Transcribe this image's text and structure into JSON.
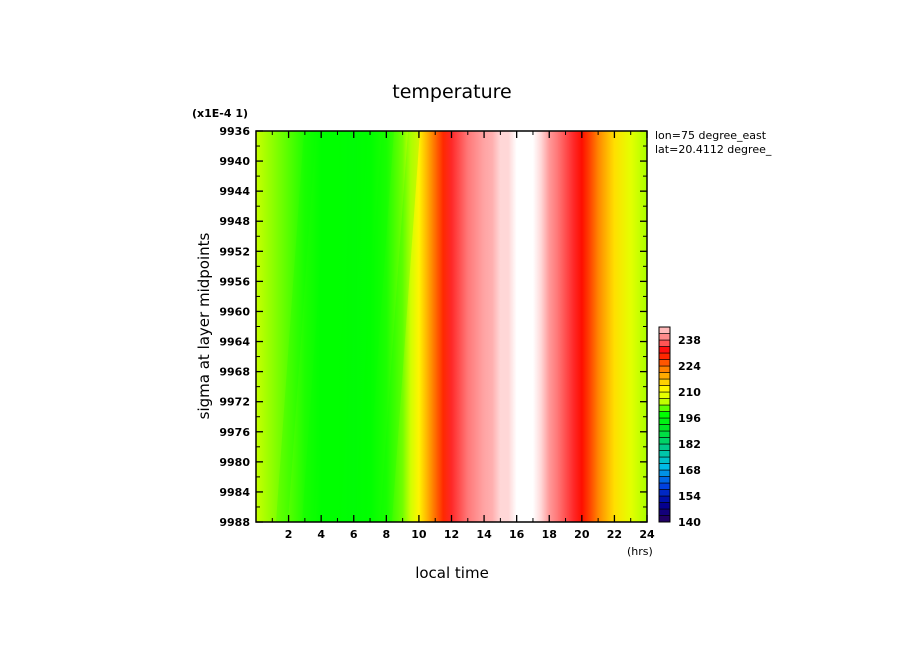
{
  "chart_data": {
    "type": "heatmap",
    "title": "temperature",
    "xlabel": "local time",
    "x_unit": "(hrs)",
    "ylabel": "sigma at layer midpoints",
    "y_scale_note": "(x1E-4 1)",
    "annotations": [
      "lon=75 degree_east",
      "lat=20.4112 degree_"
    ],
    "xlim": [
      0,
      24
    ],
    "x_ticks": [
      "2",
      "4",
      "6",
      "8",
      "10",
      "12",
      "14",
      "16",
      "18",
      "20",
      "22",
      "24"
    ],
    "ylim": [
      9988,
      9936
    ],
    "y_ticks": [
      "9936",
      "9940",
      "9944",
      "9948",
      "9952",
      "9956",
      "9960",
      "9964",
      "9968",
      "9972",
      "9976",
      "9980",
      "9984",
      "9988"
    ],
    "colorbar": {
      "ticks": [
        "140",
        "154",
        "168",
        "182",
        "196",
        "210",
        "224",
        "238"
      ],
      "range": [
        140,
        245
      ],
      "step": 3.5
    },
    "temperature_vs_local_time": {
      "x": [
        0,
        1,
        2,
        3,
        4,
        5,
        6,
        7,
        8,
        9,
        9.5,
        10,
        10.5,
        11,
        11.5,
        12,
        12.5,
        13,
        13.5,
        14,
        14.5,
        15,
        15.5,
        16,
        16.5,
        17,
        17.5,
        18,
        18.5,
        19,
        19.5,
        20,
        20.5,
        21,
        21.5,
        22,
        23,
        24
      ],
      "values": [
        205,
        203,
        201,
        199,
        198,
        198,
        197,
        198,
        199,
        202,
        206,
        212,
        218,
        224,
        229,
        234,
        236,
        238,
        240,
        242,
        243,
        244,
        244,
        246,
        247,
        246,
        244,
        241,
        238,
        236,
        234,
        231,
        227,
        222,
        218,
        214,
        208,
        204
      ]
    }
  }
}
